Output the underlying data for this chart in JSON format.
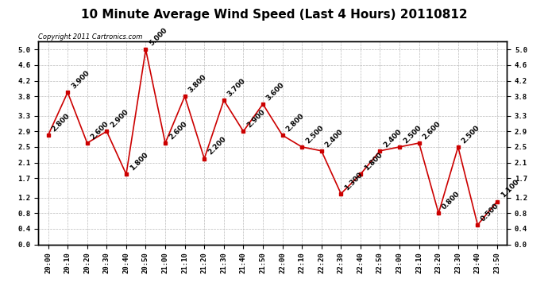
{
  "title": "10 Minute Average Wind Speed (Last 4 Hours) 20110812",
  "copyright": "Copyright 2011 Cartronics.com",
  "times": [
    "20:00",
    "20:10",
    "20:20",
    "20:30",
    "20:40",
    "20:50",
    "21:00",
    "21:10",
    "21:20",
    "21:30",
    "21:40",
    "21:50",
    "22:00",
    "22:10",
    "22:20",
    "22:30",
    "22:40",
    "22:50",
    "23:00",
    "23:10",
    "23:20",
    "23:30",
    "23:40",
    "23:50"
  ],
  "values": [
    2.8,
    3.9,
    2.6,
    2.9,
    1.8,
    5.0,
    2.6,
    3.8,
    2.2,
    3.7,
    2.9,
    3.6,
    2.8,
    2.5,
    2.4,
    1.3,
    1.8,
    2.4,
    2.5,
    2.6,
    0.8,
    2.5,
    0.5,
    1.1
  ],
  "line_color": "#cc0000",
  "marker_color": "#cc0000",
  "bg_color": "#ffffff",
  "grid_color": "#bbbbbb",
  "ylim": [
    0.0,
    5.2
  ],
  "yticks_left": [
    0.0,
    0.4,
    0.8,
    1.2,
    1.7,
    2.1,
    2.5,
    2.9,
    3.3,
    3.8,
    4.2,
    4.6,
    5.0
  ],
  "yticks_right": [
    0.0,
    0.4,
    0.8,
    1.2,
    1.7,
    2.1,
    2.5,
    2.9,
    3.3,
    3.8,
    4.2,
    4.6,
    5.0
  ],
  "title_fontsize": 11,
  "label_fontsize": 6.5,
  "annotation_fontsize": 6.5,
  "copyright_fontsize": 6
}
